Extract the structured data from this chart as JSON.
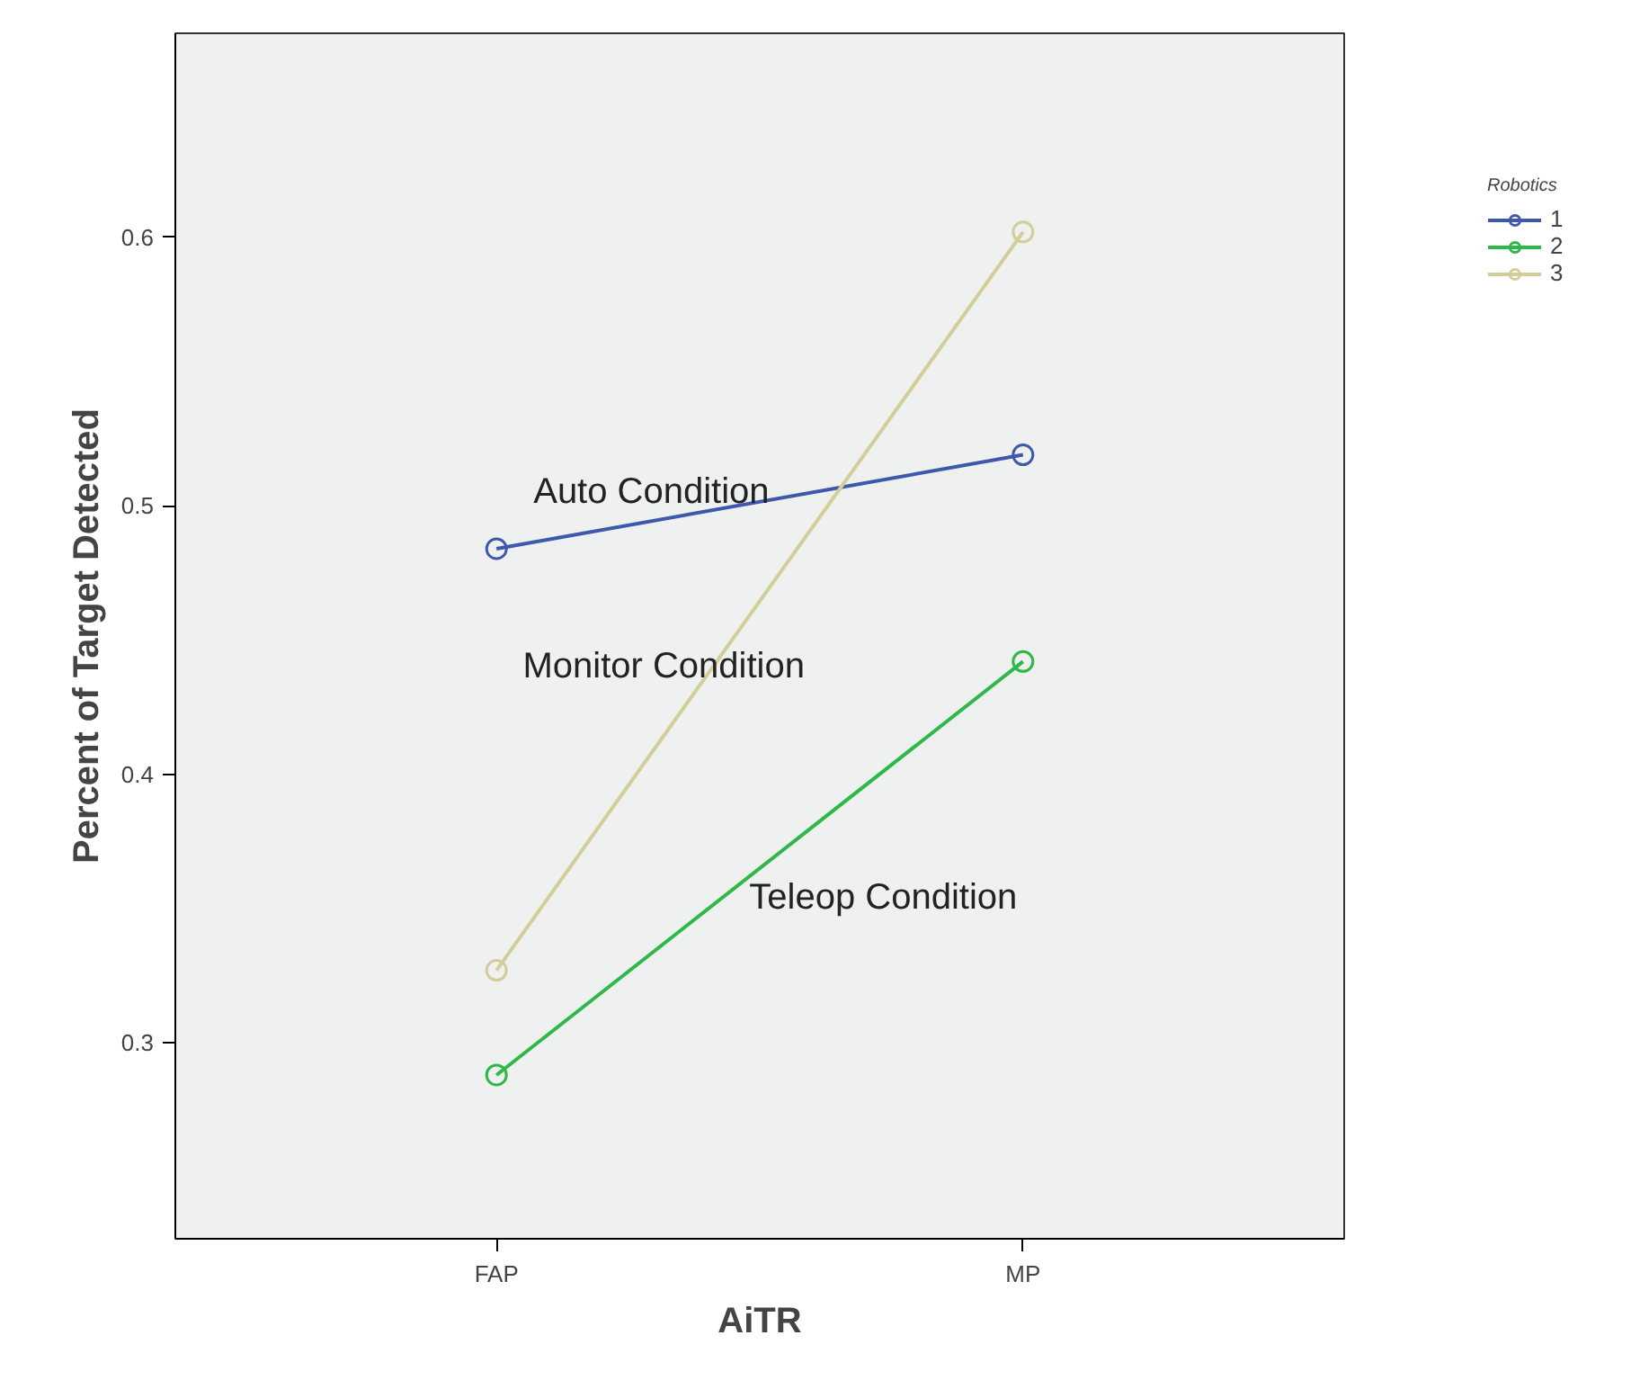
{
  "chart_data": {
    "type": "line",
    "xlabel": "AiTR",
    "ylabel": "Percent of Target Detected",
    "legend_title": "Robotics",
    "categories": [
      "FAP",
      "MP"
    ],
    "series": [
      {
        "name": "1",
        "color": "#3e58ac",
        "values": [
          0.484,
          0.519
        ]
      },
      {
        "name": "2",
        "color": "#2eb848",
        "values": [
          0.288,
          0.442
        ]
      },
      {
        "name": "3",
        "color": "#d3ce97",
        "values": [
          0.327,
          0.602
        ]
      }
    ],
    "ylim": [
      0.227,
      0.676
    ],
    "yticks": [
      {
        "value": 0.3,
        "label": "0.3"
      },
      {
        "value": 0.4,
        "label": "0.4"
      },
      {
        "value": 0.5,
        "label": "0.5"
      },
      {
        "value": 0.6,
        "label": "0.6"
      }
    ],
    "annotations": [
      "Auto Condition",
      "Monitor Condition",
      "Teleop Condition"
    ],
    "marker": "circle",
    "line_style": "solid",
    "grid": false,
    "legend": "right"
  }
}
